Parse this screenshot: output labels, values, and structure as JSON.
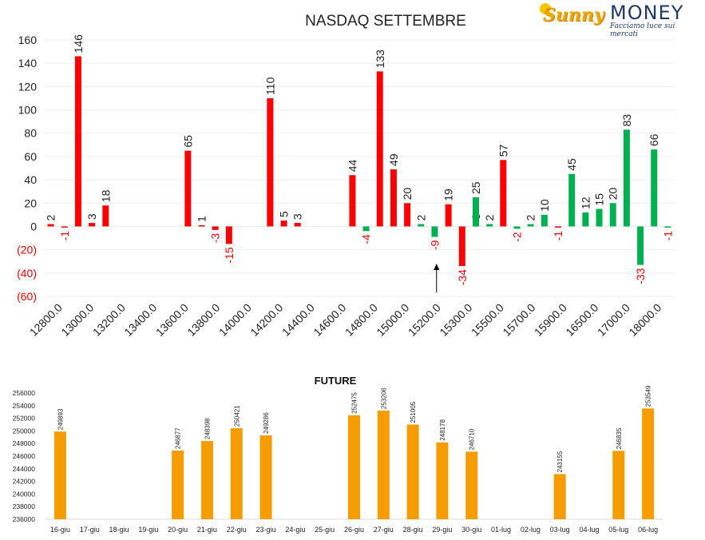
{
  "logo": {
    "brand_left": "Sunny",
    "brand_right": "MONEY",
    "tagline": "Facciamo luce sui mercati"
  },
  "chart_data": [
    {
      "type": "bar",
      "title": "NASDAQ SETTEMBRE",
      "ylim": [
        -60,
        160
      ],
      "yticks": [
        160,
        140,
        120,
        100,
        80,
        60,
        40,
        20,
        0,
        -20,
        -40,
        -60
      ],
      "ytick_labels": [
        "160",
        "140",
        "120",
        "100",
        "80",
        "60",
        "40",
        "20",
        "0",
        "(20)",
        "(40)",
        "(60)"
      ],
      "categories": [
        "12800.0",
        "13000.0",
        "13200.0",
        "13400.0",
        "13600.0",
        "13800.0",
        "14000.0",
        "14200.0",
        "14400.0",
        "14600.0",
        "14800.0",
        "15000.0",
        "15200.0",
        "15300.0",
        "15500.0",
        "15700.0",
        "15900.0",
        "16500.0",
        "17000.0",
        "18000.0"
      ],
      "grid": true,
      "colors": {
        "red": "#ff0000",
        "green": "#00b050",
        "negative_label": "#ff0000",
        "label": "#222222",
        "marker": "#000000"
      },
      "series": [
        {
          "color": "red",
          "values": [
            {
              "slot": 0,
              "value": 2,
              "label": "2"
            },
            {
              "slot": 1,
              "value": -1,
              "label": "-1"
            },
            {
              "slot": 2,
              "value": 146,
              "label": "146"
            },
            {
              "slot": 3,
              "value": 3,
              "label": "3"
            },
            {
              "slot": 4,
              "value": 18,
              "label": "18"
            },
            {
              "slot": 10,
              "value": 65,
              "label": "65"
            },
            {
              "slot": 11,
              "value": 1,
              "label": "1"
            },
            {
              "slot": 12,
              "value": -3,
              "label": "-3"
            },
            {
              "slot": 13,
              "value": -15,
              "label": "-15"
            },
            {
              "slot": 16,
              "value": 110,
              "label": "110"
            },
            {
              "slot": 17,
              "value": 5,
              "label": "5"
            },
            {
              "slot": 18,
              "value": 3,
              "label": "3"
            },
            {
              "slot": 22,
              "value": 44,
              "label": "44"
            },
            {
              "slot": 24,
              "value": 133,
              "label": "133"
            },
            {
              "slot": 25,
              "value": 49,
              "label": "49"
            },
            {
              "slot": 26,
              "value": 20,
              "label": "20"
            },
            {
              "slot": 29,
              "value": 19,
              "label": "19"
            },
            {
              "slot": 30,
              "value": -34,
              "label": "-34"
            },
            {
              "slot": 31,
              "value": 3,
              "label": "3"
            },
            {
              "slot": 33,
              "value": 57,
              "label": "57"
            },
            {
              "slot": 37,
              "value": -1,
              "label": "-1"
            }
          ]
        },
        {
          "color": "green",
          "values": [
            {
              "slot": 23,
              "value": -4,
              "label": "-4"
            },
            {
              "slot": 27,
              "value": 2,
              "label": "2"
            },
            {
              "slot": 28,
              "value": -9,
              "label": "-9"
            },
            {
              "slot": 31,
              "value": 25,
              "label": "25"
            },
            {
              "slot": 32,
              "value": 2,
              "label": "2"
            },
            {
              "slot": 34,
              "value": -2,
              "label": "-2"
            },
            {
              "slot": 35,
              "value": 2,
              "label": "2"
            },
            {
              "slot": 36,
              "value": 10,
              "label": "10"
            },
            {
              "slot": 38,
              "value": 45,
              "label": "45"
            },
            {
              "slot": 39,
              "value": 12,
              "label": "12"
            },
            {
              "slot": 40,
              "value": 15,
              "label": "15"
            },
            {
              "slot": 41,
              "value": 20,
              "label": "20"
            },
            {
              "slot": 42,
              "value": 83,
              "label": "83"
            },
            {
              "slot": 43,
              "value": -33,
              "label": "-33"
            },
            {
              "slot": 44,
              "value": 66,
              "label": "66"
            },
            {
              "slot": 45,
              "value": -1,
              "label": "-1"
            }
          ]
        }
      ],
      "annotations": [
        {
          "type": "arrow",
          "at_value": "15200.0"
        }
      ]
    },
    {
      "type": "bar",
      "title": "FUTURE",
      "ylim": [
        236000,
        256000
      ],
      "yticks": [
        256000,
        254000,
        252000,
        250000,
        248000,
        246000,
        244000,
        242000,
        240000,
        238000,
        236000
      ],
      "ytick_labels": [
        "256000",
        "254000",
        "252000",
        "250000",
        "248000",
        "246000",
        "244000",
        "242000",
        "240000",
        "238000",
        "236000"
      ],
      "categories": [
        "16-giu",
        "17-giu",
        "18-giu",
        "19-giu",
        "20-giu",
        "21-giu",
        "22-giu",
        "23-giu",
        "24-giu",
        "25-giu",
        "26-giu",
        "27-giu",
        "28-giu",
        "29-giu",
        "30-giu",
        "01-lug",
        "02-lug",
        "03-lug",
        "04-lug",
        "05-lug",
        "06-lug"
      ],
      "values": [
        249893,
        null,
        null,
        null,
        246877,
        248398,
        250421,
        249286,
        null,
        null,
        252475,
        253206,
        251005,
        248178,
        246710,
        null,
        null,
        243155,
        null,
        246835,
        253549
      ],
      "value_labels": [
        "249893",
        "",
        "",
        "",
        "246877",
        "248398",
        "250421",
        "249286",
        "",
        "",
        "252475",
        "253206",
        "251005",
        "248178",
        "246710",
        "",
        "",
        "243155",
        "",
        "246835",
        "253549"
      ],
      "color": "#f59c00",
      "grid": false
    }
  ]
}
